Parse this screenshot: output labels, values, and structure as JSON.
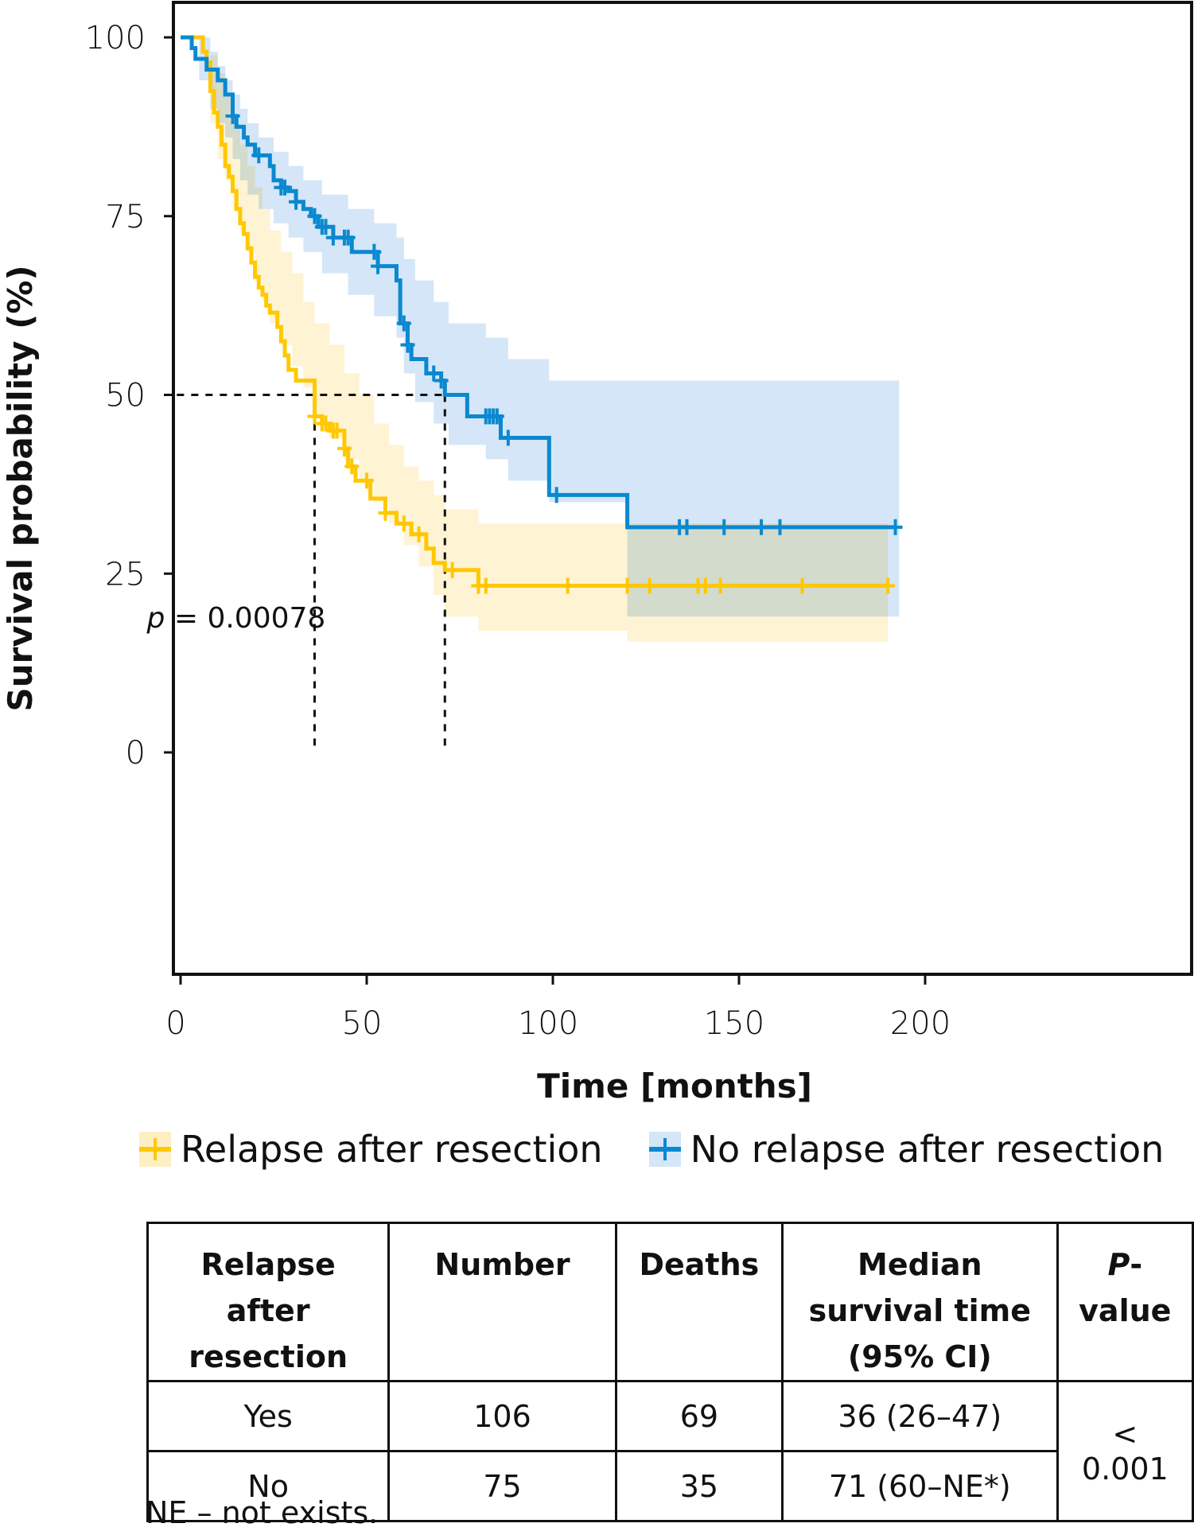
{
  "chart_data": {
    "type": "line",
    "subtype": "kaplan-meier",
    "xlabel": "Time [months]",
    "ylabel": "Survival probability (%)",
    "xlim": [
      -10,
      205
    ],
    "ylim": [
      -5,
      105
    ],
    "xticks": [
      0,
      50,
      100,
      150,
      200
    ],
    "xtick_labels": [
      "0",
      "50",
      "100",
      "150",
      "200"
    ],
    "yticks": [
      0,
      25,
      50,
      75,
      100
    ],
    "ytick_labels": [
      "0",
      "25",
      "50",
      "75",
      "100"
    ],
    "grid": false,
    "legend_placement": "bottom",
    "annotation": {
      "prefix": "p",
      "text": " = 0.00078",
      "x": -8,
      "y": 19
    },
    "median_lines": {
      "y": 50,
      "x_values": [
        36,
        71
      ],
      "style": "dashed"
    },
    "series": [
      {
        "name": "Relapse after resection",
        "color": "#FFC800",
        "ci_color": "#FDEFC4",
        "steps": [
          [
            0,
            100
          ],
          [
            6,
            98
          ],
          [
            7,
            96.5
          ],
          [
            8,
            92.5
          ],
          [
            9,
            89.5
          ],
          [
            10,
            87.5
          ],
          [
            11,
            85
          ],
          [
            12,
            82
          ],
          [
            13,
            80.5
          ],
          [
            14,
            78.5
          ],
          [
            15,
            76
          ],
          [
            16,
            74
          ],
          [
            17,
            72.5
          ],
          [
            18,
            70.5
          ],
          [
            19,
            68.5
          ],
          [
            20,
            66.5
          ],
          [
            21,
            65
          ],
          [
            22,
            64
          ],
          [
            23,
            62.5
          ],
          [
            24,
            61.5
          ],
          [
            26,
            59.5
          ],
          [
            27,
            57.5
          ],
          [
            28,
            55.5
          ],
          [
            29,
            53.5
          ],
          [
            31,
            52
          ],
          [
            36,
            47
          ],
          [
            38,
            46
          ],
          [
            40,
            45
          ],
          [
            44,
            42.5
          ],
          [
            45,
            40
          ],
          [
            47,
            38
          ],
          [
            51,
            35.5
          ],
          [
            55,
            33.5
          ],
          [
            58,
            32
          ],
          [
            62,
            30.5
          ],
          [
            66,
            28.5
          ],
          [
            68,
            26.5
          ],
          [
            71,
            25.5
          ],
          [
            80,
            23.3
          ],
          [
            190,
            23.3
          ]
        ],
        "ci_steps": [
          [
            0,
            100,
            100
          ],
          [
            8,
            97.5,
            88
          ],
          [
            10,
            95,
            83
          ],
          [
            12,
            92,
            80
          ],
          [
            14,
            88,
            76
          ],
          [
            16,
            85,
            73
          ],
          [
            18,
            82,
            70
          ],
          [
            20,
            79,
            66
          ],
          [
            22,
            76,
            63
          ],
          [
            24,
            73,
            60
          ],
          [
            27,
            70,
            57
          ],
          [
            30,
            67,
            54
          ],
          [
            33,
            63,
            51
          ],
          [
            36,
            60,
            47
          ],
          [
            40,
            57,
            44
          ],
          [
            44,
            53,
            41
          ],
          [
            48,
            50,
            38
          ],
          [
            52,
            46,
            35
          ],
          [
            56,
            43,
            32
          ],
          [
            60,
            40,
            29
          ],
          [
            64,
            38,
            26
          ],
          [
            68,
            36,
            22
          ],
          [
            71,
            34,
            19
          ],
          [
            80,
            32,
            17
          ],
          [
            120,
            32,
            15.5
          ],
          [
            190,
            32,
            15.5
          ]
        ],
        "censor_times": [
          36,
          38,
          39,
          41,
          42,
          44,
          46,
          50,
          55,
          60,
          64,
          73,
          80,
          82,
          104,
          120,
          126,
          139,
          141,
          145,
          167,
          190
        ]
      },
      {
        "name": "No relapse after resection",
        "color": "#0A88D0",
        "ci_color": "#D4E6F7",
        "steps": [
          [
            0,
            100
          ],
          [
            3,
            98.5
          ],
          [
            4,
            97
          ],
          [
            7,
            95.5
          ],
          [
            10,
            94
          ],
          [
            12,
            92
          ],
          [
            14,
            89
          ],
          [
            15,
            87.5
          ],
          [
            17,
            86
          ],
          [
            18,
            85
          ],
          [
            20,
            83.5
          ],
          [
            24,
            82
          ],
          [
            25,
            80
          ],
          [
            27,
            79
          ],
          [
            29,
            78.5
          ],
          [
            31,
            77
          ],
          [
            33,
            76
          ],
          [
            35,
            75
          ],
          [
            37,
            73.5
          ],
          [
            41,
            72
          ],
          [
            46,
            70
          ],
          [
            53,
            68
          ],
          [
            58,
            66
          ],
          [
            59,
            60
          ],
          [
            61,
            57
          ],
          [
            62,
            55
          ],
          [
            66,
            53
          ],
          [
            70,
            52
          ],
          [
            71,
            50
          ],
          [
            77,
            47
          ],
          [
            86,
            44
          ],
          [
            99,
            36
          ],
          [
            120,
            31.5
          ],
          [
            192,
            31.5
          ]
        ],
        "ci_steps": [
          [
            0,
            100,
            100
          ],
          [
            5,
            100,
            94
          ],
          [
            8,
            98,
            90
          ],
          [
            10,
            96,
            88
          ],
          [
            12,
            94,
            86
          ],
          [
            14,
            92,
            83
          ],
          [
            16,
            90,
            80
          ],
          [
            18,
            88,
            78
          ],
          [
            21,
            86,
            76
          ],
          [
            25,
            84,
            74
          ],
          [
            29,
            82,
            72
          ],
          [
            33,
            80,
            70
          ],
          [
            38,
            78,
            67
          ],
          [
            45,
            76,
            64
          ],
          [
            52,
            74,
            61
          ],
          [
            58,
            72,
            58
          ],
          [
            60,
            69,
            53
          ],
          [
            63,
            66,
            49
          ],
          [
            68,
            63,
            46
          ],
          [
            72,
            60,
            43
          ],
          [
            82,
            58,
            41
          ],
          [
            88,
            55,
            38
          ],
          [
            99,
            52,
            35
          ],
          [
            120,
            52,
            19
          ],
          [
            193,
            52,
            19
          ]
        ],
        "censor_times": [
          14,
          21,
          27,
          28,
          31,
          36,
          38,
          39,
          41,
          44,
          45,
          52,
          53,
          60,
          61,
          68,
          70,
          82,
          83,
          84,
          85,
          88,
          101,
          134,
          136,
          146,
          156,
          161,
          192
        ]
      }
    ]
  },
  "legend": {
    "items": [
      {
        "label": "Relapse after resection",
        "color": "#FFC800",
        "ci_color": "#FDEFC4"
      },
      {
        "label": "No relapse after resection",
        "color": "#0A88D0",
        "ci_color": "#D4E6F7"
      }
    ]
  },
  "table": {
    "headers": {
      "group": "Relapse after resection",
      "number": "Number",
      "deaths": "Deaths",
      "median": "Median survival time (95% CI)",
      "pvalue_prefix": "P",
      "pvalue_suffix": "-value"
    },
    "rows": [
      {
        "group": "Yes",
        "number": "106",
        "deaths": "69",
        "median": "36 (26–47)"
      },
      {
        "group": "No",
        "number": "75",
        "deaths": "35",
        "median": "71 (60–NE*)"
      }
    ],
    "pvalue": "< 0.001"
  },
  "footnote": "NE – not exists."
}
